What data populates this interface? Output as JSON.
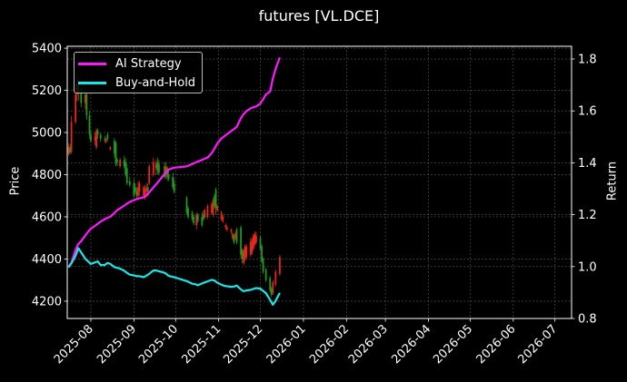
{
  "figure": {
    "title": "futures [VL.DCE]",
    "background": "#000000"
  },
  "legend": {
    "items": [
      {
        "label": "AI Strategy",
        "color": "#ff19ff"
      },
      {
        "label": "Buy-and-Hold",
        "color": "#19e6e6"
      }
    ]
  },
  "chart_data": {
    "type": "candlestick+line",
    "title": "futures [VL.DCE]",
    "xlabel": "",
    "ylabel_left": "Price",
    "ylabel_right": "Return",
    "xlim": [
      "2025-07-15",
      "2026-07-13"
    ],
    "ylim_left": [
      4118,
      5409
    ],
    "ylim_right": [
      0.8,
      1.849
    ],
    "grid": true,
    "legend_position": "upper left",
    "xticks": [
      "2025-08",
      "2025-09",
      "2025-10",
      "2025-11",
      "2025-12",
      "2026-01",
      "2026-02",
      "2026-03",
      "2026-04",
      "2026-05",
      "2026-06",
      "2026-07"
    ],
    "yticks_left": [
      4200,
      4400,
      4600,
      4800,
      5000,
      5200,
      5400
    ],
    "yticks_right": [
      "0.8",
      "1.0",
      "1.2",
      "1.4",
      "1.6",
      "1.8"
    ],
    "candle_colors": {
      "up": "#e8261a",
      "down": "#1e9a1e"
    },
    "candles_columns": [
      "date",
      "open",
      "high",
      "low",
      "close"
    ],
    "candles": [
      [
        "2025-07-16",
        4900,
        4950,
        4890,
        4930
      ],
      [
        "2025-07-17",
        4930,
        4945,
        4895,
        4905
      ],
      [
        "2025-07-18",
        4910,
        5080,
        4900,
        5050
      ],
      [
        "2025-07-21",
        5050,
        5230,
        5040,
        5180
      ],
      [
        "2025-07-22",
        5180,
        5280,
        5150,
        5230
      ],
      [
        "2025-07-23",
        5230,
        5260,
        5150,
        5190
      ],
      [
        "2025-07-25",
        5190,
        5210,
        5120,
        5140
      ],
      [
        "2025-07-28",
        5140,
        5200,
        5110,
        5180
      ],
      [
        "2025-07-29",
        5180,
        5190,
        5060,
        5080
      ],
      [
        "2025-07-31",
        5080,
        5100,
        4970,
        4990
      ],
      [
        "2025-08-01",
        4990,
        5010,
        4950,
        4960
      ],
      [
        "2025-08-04",
        4960,
        5000,
        4940,
        4980
      ],
      [
        "2025-08-05",
        4930,
        5020,
        4920,
        5010
      ],
      [
        "2025-08-06",
        5010,
        5020,
        4970,
        4990
      ],
      [
        "2025-08-08",
        4990,
        5000,
        4955,
        4970
      ],
      [
        "2025-08-11",
        4970,
        4985,
        4950,
        4965
      ],
      [
        "2025-08-12",
        4955,
        4975,
        4950,
        4970
      ],
      [
        "2025-08-13",
        4990,
        5000,
        4960,
        4970
      ],
      [
        "2025-08-15",
        4920,
        4935,
        4915,
        4930
      ],
      [
        "2025-08-18",
        4960,
        4975,
        4880,
        4900
      ],
      [
        "2025-08-19",
        4950,
        4960,
        4840,
        4850
      ],
      [
        "2025-08-20",
        4870,
        4880,
        4840,
        4860
      ],
      [
        "2025-08-22",
        4840,
        4880,
        4830,
        4870
      ],
      [
        "2025-08-25",
        4870,
        4890,
        4830,
        4840
      ],
      [
        "2025-08-26",
        4860,
        4880,
        4790,
        4800
      ],
      [
        "2025-08-27",
        4830,
        4850,
        4750,
        4760
      ],
      [
        "2025-08-29",
        4770,
        4790,
        4740,
        4750
      ],
      [
        "2025-09-01",
        4760,
        4780,
        4690,
        4700
      ],
      [
        "2025-09-02",
        4740,
        4760,
        4710,
        4720
      ],
      [
        "2025-09-03",
        4720,
        4740,
        4680,
        4700
      ],
      [
        "2025-09-04",
        4700,
        4770,
        4690,
        4740
      ],
      [
        "2025-09-05",
        4720,
        4770,
        4700,
        4760
      ],
      [
        "2025-09-08",
        4700,
        4750,
        4690,
        4740
      ],
      [
        "2025-09-09",
        4690,
        4750,
        4680,
        4730
      ],
      [
        "2025-09-10",
        4720,
        4760,
        4700,
        4740
      ],
      [
        "2025-09-11",
        4740,
        4760,
        4700,
        4720
      ],
      [
        "2025-09-12",
        4760,
        4850,
        4750,
        4840
      ],
      [
        "2025-09-15",
        4800,
        4880,
        4790,
        4860
      ],
      [
        "2025-09-17",
        4830,
        4870,
        4800,
        4850
      ],
      [
        "2025-09-18",
        4860,
        4880,
        4800,
        4820
      ],
      [
        "2025-09-19",
        4850,
        4870,
        4800,
        4810
      ],
      [
        "2025-09-23",
        4840,
        4860,
        4780,
        4790
      ],
      [
        "2025-09-24",
        4800,
        4860,
        4780,
        4840
      ],
      [
        "2025-09-25",
        4830,
        4840,
        4770,
        4790
      ],
      [
        "2025-09-26",
        4800,
        4820,
        4770,
        4780
      ],
      [
        "2025-09-29",
        4790,
        4810,
        4730,
        4740
      ],
      [
        "2025-09-30",
        4760,
        4780,
        4710,
        4720
      ],
      [
        "2025-10-09",
        4690,
        4700,
        4610,
        4620
      ],
      [
        "2025-10-10",
        4640,
        4650,
        4590,
        4600
      ],
      [
        "2025-10-13",
        4620,
        4630,
        4580,
        4590
      ],
      [
        "2025-10-14",
        4600,
        4610,
        4560,
        4570
      ],
      [
        "2025-10-16",
        4560,
        4620,
        4540,
        4610
      ],
      [
        "2025-10-17",
        4610,
        4620,
        4570,
        4580
      ],
      [
        "2025-10-20",
        4600,
        4620,
        4550,
        4560
      ],
      [
        "2025-10-21",
        4610,
        4630,
        4580,
        4590
      ],
      [
        "2025-10-22",
        4600,
        4640,
        4590,
        4630
      ],
      [
        "2025-10-24",
        4600,
        4660,
        4590,
        4650
      ],
      [
        "2025-10-27",
        4620,
        4670,
        4610,
        4660
      ],
      [
        "2025-10-28",
        4610,
        4690,
        4600,
        4680
      ],
      [
        "2025-10-29",
        4700,
        4710,
        4640,
        4650
      ],
      [
        "2025-10-30",
        4730,
        4740,
        4610,
        4640
      ],
      [
        "2025-10-31",
        4630,
        4660,
        4620,
        4650
      ],
      [
        "2025-11-03",
        4590,
        4630,
        4580,
        4620
      ],
      [
        "2025-11-04",
        4580,
        4610,
        4570,
        4600
      ],
      [
        "2025-11-06",
        4550,
        4570,
        4540,
        4560
      ],
      [
        "2025-11-07",
        4540,
        4560,
        4530,
        4550
      ],
      [
        "2025-11-10",
        4530,
        4545,
        4520,
        4540
      ],
      [
        "2025-11-11",
        4500,
        4530,
        4490,
        4520
      ],
      [
        "2025-11-12",
        4510,
        4520,
        4470,
        4480
      ],
      [
        "2025-11-13",
        4500,
        4530,
        4490,
        4520
      ],
      [
        "2025-11-14",
        4540,
        4550,
        4470,
        4480
      ],
      [
        "2025-11-17",
        4550,
        4560,
        4400,
        4420
      ],
      [
        "2025-11-18",
        4440,
        4450,
        4380,
        4400
      ],
      [
        "2025-11-19",
        4380,
        4450,
        4370,
        4440
      ],
      [
        "2025-11-20",
        4400,
        4470,
        4390,
        4460
      ],
      [
        "2025-11-21",
        4410,
        4470,
        4400,
        4460
      ],
      [
        "2025-11-24",
        4420,
        4500,
        4410,
        4480
      ],
      [
        "2025-11-25",
        4430,
        4500,
        4420,
        4490
      ],
      [
        "2025-11-26",
        4450,
        4520,
        4440,
        4510
      ],
      [
        "2025-11-27",
        4470,
        4530,
        4460,
        4520
      ],
      [
        "2025-11-28",
        4480,
        4530,
        4470,
        4510
      ],
      [
        "2025-12-01",
        4500,
        4510,
        4440,
        4450
      ],
      [
        "2025-12-02",
        4460,
        4470,
        4380,
        4390
      ],
      [
        "2025-12-03",
        4400,
        4410,
        4330,
        4340
      ],
      [
        "2025-12-05",
        4350,
        4360,
        4290,
        4300
      ],
      [
        "2025-12-08",
        4310,
        4320,
        4240,
        4250
      ],
      [
        "2025-12-09",
        4260,
        4270,
        4220,
        4230
      ],
      [
        "2025-12-10",
        4240,
        4300,
        4230,
        4290
      ],
      [
        "2025-12-12",
        4280,
        4350,
        4270,
        4340
      ],
      [
        "2025-12-15",
        4330,
        4420,
        4320,
        4410
      ]
    ],
    "x": [
      "2025-07-16",
      "2025-07-18",
      "2025-07-21",
      "2025-07-23",
      "2025-07-25",
      "2025-07-28",
      "2025-07-30",
      "2025-08-01",
      "2025-08-04",
      "2025-08-06",
      "2025-08-08",
      "2025-08-11",
      "2025-08-13",
      "2025-08-15",
      "2025-08-18",
      "2025-08-20",
      "2025-08-22",
      "2025-08-25",
      "2025-08-27",
      "2025-08-29",
      "2025-09-01",
      "2025-09-03",
      "2025-09-05",
      "2025-09-08",
      "2025-09-10",
      "2025-09-12",
      "2025-09-15",
      "2025-09-17",
      "2025-09-19",
      "2025-09-22",
      "2025-09-24",
      "2025-09-26",
      "2025-09-30",
      "2025-10-09",
      "2025-10-13",
      "2025-10-15",
      "2025-10-17",
      "2025-10-20",
      "2025-10-22",
      "2025-10-24",
      "2025-10-27",
      "2025-10-29",
      "2025-10-31",
      "2025-11-03",
      "2025-11-05",
      "2025-11-07",
      "2025-11-10",
      "2025-11-12",
      "2025-11-14",
      "2025-11-17",
      "2025-11-19",
      "2025-11-21",
      "2025-11-24",
      "2025-11-26",
      "2025-11-28",
      "2025-12-01",
      "2025-12-03",
      "2025-12-05",
      "2025-12-08",
      "2025-12-10",
      "2025-12-12",
      "2025-12-15"
    ],
    "series": [
      {
        "name": "AI Strategy",
        "axis": "right",
        "color": "#ff19ff",
        "values": [
          1.0,
          1.015,
          1.065,
          1.087,
          1.098,
          1.12,
          1.134,
          1.146,
          1.157,
          1.165,
          1.173,
          1.183,
          1.188,
          1.192,
          1.207,
          1.218,
          1.224,
          1.235,
          1.242,
          1.249,
          1.256,
          1.26,
          1.263,
          1.267,
          1.273,
          1.286,
          1.305,
          1.318,
          1.33,
          1.35,
          1.363,
          1.374,
          1.381,
          1.386,
          1.395,
          1.4,
          1.405,
          1.411,
          1.416,
          1.42,
          1.437,
          1.455,
          1.474,
          1.494,
          1.502,
          1.51,
          1.522,
          1.53,
          1.538,
          1.572,
          1.588,
          1.599,
          1.61,
          1.614,
          1.617,
          1.628,
          1.645,
          1.663,
          1.674,
          1.725,
          1.762,
          1.806
        ]
      },
      {
        "name": "Buy-and-Hold",
        "axis": "right",
        "color": "#19e6e6",
        "values": [
          0.997,
          1.013,
          1.042,
          1.071,
          1.055,
          1.03,
          1.02,
          1.01,
          1.016,
          1.02,
          1.006,
          1.006,
          1.014,
          1.01,
          0.998,
          0.995,
          0.992,
          0.984,
          0.976,
          0.969,
          0.966,
          0.963,
          0.963,
          0.959,
          0.965,
          0.972,
          0.985,
          0.985,
          0.982,
          0.978,
          0.973,
          0.964,
          0.959,
          0.944,
          0.934,
          0.932,
          0.928,
          0.935,
          0.939,
          0.943,
          0.949,
          0.946,
          0.938,
          0.93,
          0.926,
          0.924,
          0.922,
          0.923,
          0.927,
          0.912,
          0.905,
          0.908,
          0.91,
          0.914,
          0.917,
          0.915,
          0.906,
          0.898,
          0.872,
          0.853,
          0.868,
          0.899
        ]
      }
    ]
  }
}
